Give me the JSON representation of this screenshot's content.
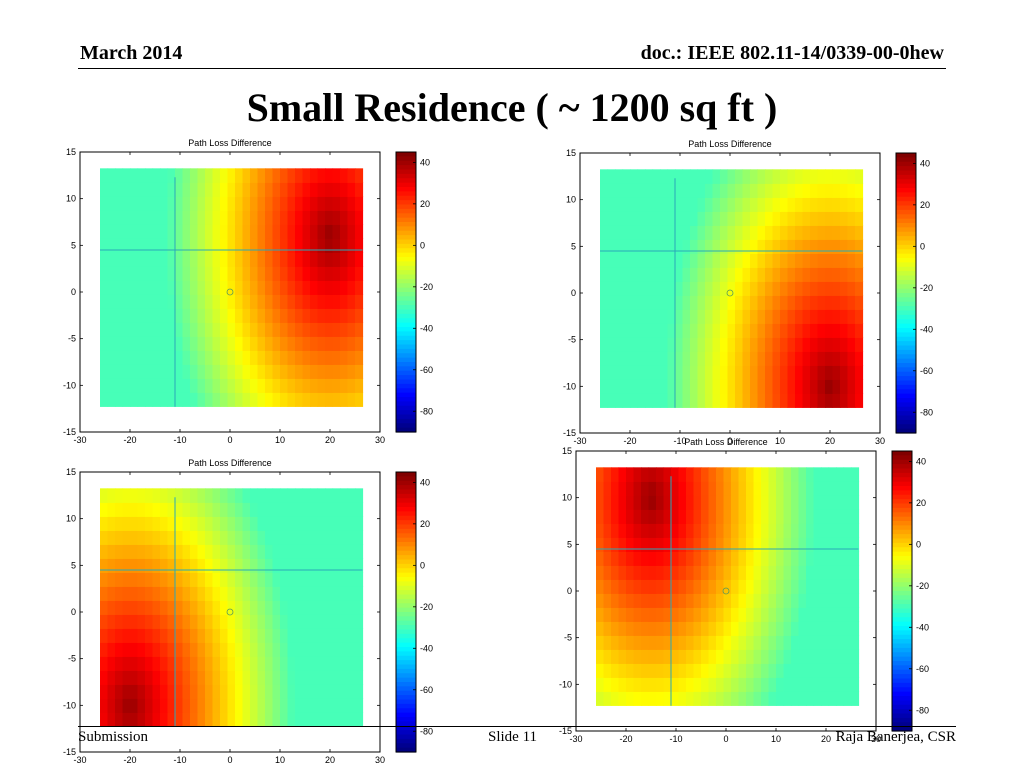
{
  "header": {
    "date": "March 2014",
    "doc_id": "doc.: IEEE 802.11-14/0339-00-0hew"
  },
  "slide_title": "Small Residence  ( ~ 1200 sq ft )",
  "footer": {
    "left": "Submission",
    "center": "Slide 11",
    "right": "Raja Banerjea, CSR"
  },
  "chart_data": [
    {
      "type": "heatmap",
      "title": "Path Loss Difference",
      "x_ticks": [
        -30,
        -20,
        -10,
        0,
        10,
        20,
        30
      ],
      "y_ticks": [
        15,
        10,
        5,
        0,
        -5,
        -10,
        -15
      ],
      "xlim": [
        -30,
        30
      ],
      "ylim": [
        -15,
        15
      ],
      "colorbar": {
        "ticks": [
          40,
          20,
          0,
          -20,
          -40,
          -60,
          -80
        ],
        "range": [
          -90,
          45
        ]
      },
      "hotspot": [
        20,
        6
      ]
    },
    {
      "type": "heatmap",
      "title": "Path Loss Difference",
      "x_ticks": [
        -30,
        -20,
        -10,
        0,
        10,
        20,
        30
      ],
      "y_ticks": [
        15,
        10,
        5,
        0,
        -5,
        -10,
        -15
      ],
      "xlim": [
        -30,
        30
      ],
      "ylim": [
        -15,
        15
      ],
      "colorbar": {
        "ticks": [
          40,
          20,
          0,
          -20,
          -40,
          -60,
          -80
        ],
        "range": [
          -90,
          45
        ]
      },
      "hotspot": [
        20,
        -10
      ]
    },
    {
      "type": "heatmap",
      "title": "Path Loss Difference",
      "x_ticks": [
        -30,
        -20,
        -10,
        0,
        10,
        20,
        30
      ],
      "y_ticks": [
        15,
        10,
        5,
        0,
        -5,
        -10,
        -15
      ],
      "xlim": [
        -30,
        30
      ],
      "ylim": [
        -15,
        15
      ],
      "colorbar": {
        "ticks": [
          40,
          20,
          0,
          -20,
          -40,
          -60,
          -80
        ],
        "range": [
          -90,
          45
        ]
      },
      "hotspot": [
        -20,
        -10
      ]
    },
    {
      "type": "heatmap",
      "title": "Path Loss Difference",
      "x_ticks": [
        -30,
        -20,
        -10,
        0,
        10,
        20,
        30
      ],
      "y_ticks": [
        15,
        10,
        5,
        0,
        -5,
        -10,
        -15
      ],
      "xlim": [
        -30,
        30
      ],
      "ylim": [
        -15,
        15
      ],
      "colorbar": {
        "ticks": [
          40,
          20,
          0,
          -20,
          -40,
          -60,
          -80
        ],
        "range": [
          -90,
          45
        ]
      },
      "hotspot": [
        -15,
        10
      ]
    }
  ]
}
